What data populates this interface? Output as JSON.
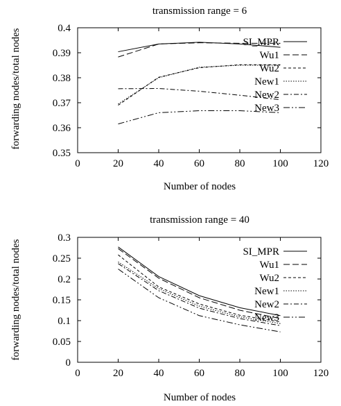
{
  "chart_data": [
    {
      "type": "line",
      "title": "transmission range = 6",
      "xlabel": "Number of nodes",
      "ylabel": "forwarding nodes/total nodes",
      "xlim": [
        0,
        120
      ],
      "ylim": [
        0.35,
        0.4
      ],
      "xticks": [
        0,
        20,
        40,
        60,
        80,
        100,
        120
      ],
      "yticks": [
        0.35,
        0.36,
        0.37,
        0.38,
        0.39,
        0.4
      ],
      "ytick_labels": [
        "0.35",
        "0.36",
        "0.37",
        "0.38",
        "0.39",
        "0.4"
      ],
      "grid": false,
      "legend": "inside-top-right",
      "x": [
        20,
        40,
        60,
        80,
        100
      ],
      "series": [
        {
          "name": "SI_MPR",
          "values": [
            0.3904,
            0.3935,
            0.3942,
            0.3935,
            0.3922
          ]
        },
        {
          "name": "Wu1",
          "values": [
            0.3883,
            0.3935,
            0.394,
            0.3938,
            0.3938
          ]
        },
        {
          "name": "Wu2",
          "values": [
            0.369,
            0.3802,
            0.384,
            0.3852,
            0.3852
          ]
        },
        {
          "name": "New1",
          "values": [
            0.3695,
            0.38,
            0.3842,
            0.385,
            0.385
          ]
        },
        {
          "name": "New2",
          "values": [
            0.3756,
            0.3757,
            0.3746,
            0.373,
            0.3712
          ]
        },
        {
          "name": "New3",
          "values": [
            0.3615,
            0.366,
            0.3668,
            0.3668,
            0.366
          ]
        }
      ]
    },
    {
      "type": "line",
      "title": "transmission range = 40",
      "xlabel": "Number of nodes",
      "ylabel": "forwarding nodes/total nodes",
      "xlim": [
        0,
        120
      ],
      "ylim": [
        0,
        0.3
      ],
      "xticks": [
        0,
        20,
        40,
        60,
        80,
        100,
        120
      ],
      "yticks": [
        0,
        0.05,
        0.1,
        0.15,
        0.2,
        0.25,
        0.3
      ],
      "ytick_labels": [
        "0",
        "0.05",
        "0.1",
        "0.15",
        "0.2",
        "0.25",
        "0.3"
      ],
      "grid": false,
      "legend": "inside-top-right",
      "x": [
        20,
        40,
        60,
        80,
        100
      ],
      "series": [
        {
          "name": "SI_MPR",
          "values": [
            0.277,
            0.206,
            0.16,
            0.131,
            0.112
          ]
        },
        {
          "name": "Wu1",
          "values": [
            0.273,
            0.202,
            0.155,
            0.125,
            0.105
          ]
        },
        {
          "name": "Wu2",
          "values": [
            0.258,
            0.181,
            0.14,
            0.113,
            0.097
          ]
        },
        {
          "name": "New1",
          "values": [
            0.241,
            0.177,
            0.135,
            0.109,
            0.093
          ]
        },
        {
          "name": "New2",
          "values": [
            0.237,
            0.172,
            0.13,
            0.105,
            0.088
          ]
        },
        {
          "name": "New3",
          "values": [
            0.224,
            0.155,
            0.112,
            0.09,
            0.073
          ]
        }
      ]
    }
  ]
}
